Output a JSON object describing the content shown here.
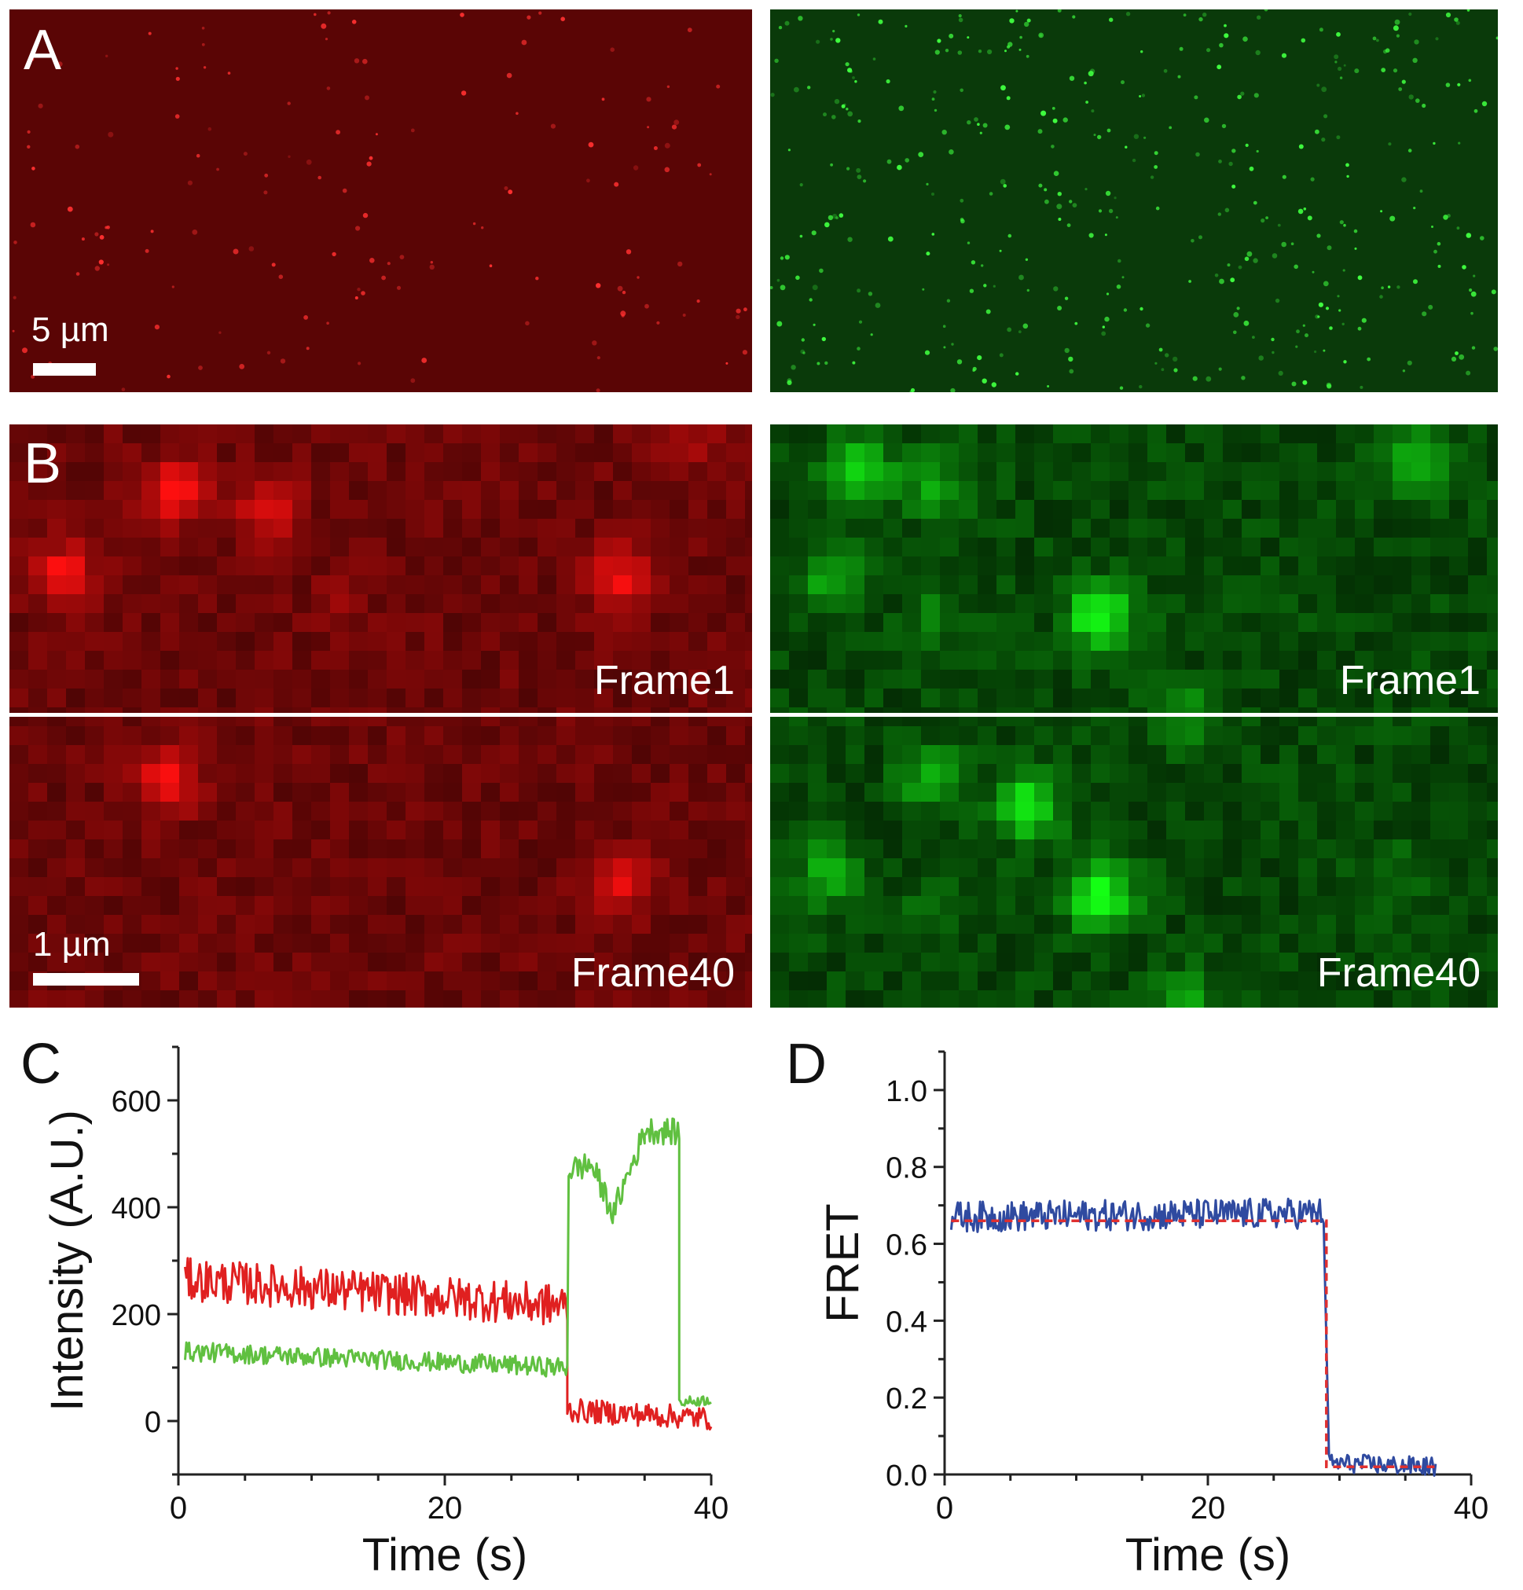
{
  "colors": {
    "red_channel": "#e02020",
    "green_channel": "#60c040",
    "blue_trace": "#2f4aa0",
    "fit": "#e03030",
    "red_bg": "#5a0505",
    "green_bg": "#0a3a0a"
  },
  "panel_a": {
    "letter": "A",
    "scale_label": "5 µm"
  },
  "panel_b": {
    "letter": "B",
    "scale_label": "1 µm",
    "frame1_red": "Frame1",
    "frame1_green": "Frame1",
    "frame40_red": "Frame40",
    "frame40_green": "Frame40"
  },
  "chart_data": [
    {
      "panel": "C",
      "type": "line",
      "xlabel": "Time (s)",
      "ylabel": "Intensity (A.U.)",
      "xlim": [
        0,
        40
      ],
      "ylim": [
        -100,
        700
      ],
      "xticks": [
        0,
        20,
        40
      ],
      "yticks": [
        0,
        200,
        400,
        600
      ],
      "series": [
        {
          "color": "#e02020",
          "segments": [
            {
              "from": 0.5,
              "to": 29.2,
              "start": 265,
              "end": 215,
              "noise": 40
            },
            {
              "from": 29.2,
              "to": 40,
              "start": 20,
              "end": 5,
              "noise": 22
            }
          ]
        },
        {
          "color": "#60c040",
          "segments": [
            {
              "from": 0.5,
              "to": 29.2,
              "start": 130,
              "end": 100,
              "noise": 18
            },
            {
              "from": 29.3,
              "to": 31,
              "start": 470,
              "end": 480,
              "noise": 25
            },
            {
              "from": 31,
              "to": 32.8,
              "start": 480,
              "end": 380,
              "noise": 25
            },
            {
              "from": 32.8,
              "to": 35,
              "start": 400,
              "end": 540,
              "noise": 25
            },
            {
              "from": 35,
              "to": 37.6,
              "start": 545,
              "end": 540,
              "noise": 25
            },
            {
              "from": 37.6,
              "to": 40,
              "start": 35,
              "end": 40,
              "noise": 10
            }
          ]
        }
      ]
    },
    {
      "panel": "D",
      "type": "line",
      "xlabel": "Time (s)",
      "ylabel": "FRET",
      "xlim": [
        0,
        40
      ],
      "ylim": [
        0,
        1.1
      ],
      "xticks": [
        0,
        20,
        40
      ],
      "yticks": [
        0.0,
        0.2,
        0.4,
        0.6,
        0.8,
        1.0
      ],
      "ytick_labels": [
        "0.0",
        "0.2",
        "0.4",
        "0.6",
        "0.8",
        "1.0"
      ],
      "series": [
        {
          "color": "#2f4aa0",
          "segments": [
            {
              "from": 0.5,
              "to": 28.8,
              "start": 0.67,
              "end": 0.68,
              "noise": 0.04
            },
            {
              "from": 29.2,
              "to": 37.3,
              "start": 0.03,
              "end": 0.02,
              "noise": 0.025
            }
          ]
        }
      ],
      "fit": {
        "color": "#e03030",
        "steps": [
          {
            "from": 0.5,
            "to": 29.0,
            "value": 0.66
          },
          {
            "from": 29.0,
            "to": 37.3,
            "value": 0.02
          }
        ]
      }
    }
  ]
}
